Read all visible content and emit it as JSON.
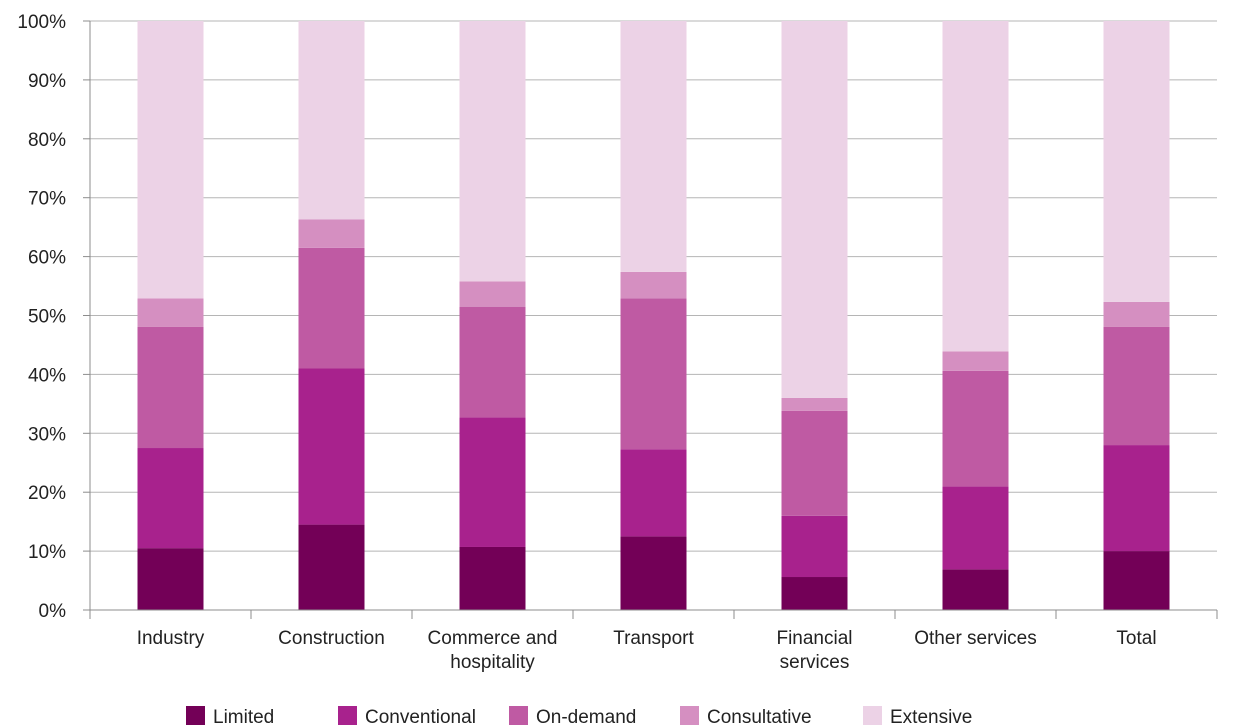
{
  "chart_data": {
    "type": "bar",
    "stacked": true,
    "percent_scale": true,
    "categories": [
      [
        "Industry"
      ],
      [
        "Construction"
      ],
      [
        "Commerce and",
        "hospitality"
      ],
      [
        "Transport"
      ],
      [
        "Financial",
        "services"
      ],
      [
        "Other services"
      ],
      [
        "Total"
      ]
    ],
    "series": [
      {
        "name": "Limited",
        "color": "#730057",
        "values": [
          10.5,
          14.5,
          10.7,
          12.5,
          5.6,
          6.9,
          10.0
        ]
      },
      {
        "name": "Conventional",
        "color": "#a8228d",
        "values": [
          17.0,
          26.5,
          22.0,
          14.8,
          10.4,
          14.1,
          18.0
        ]
      },
      {
        "name": "On-demand",
        "color": "#bf5aa3",
        "values": [
          20.6,
          20.5,
          18.8,
          25.6,
          17.8,
          19.6,
          20.1
        ]
      },
      {
        "name": "Consultative",
        "color": "#d58fc1",
        "values": [
          4.8,
          4.8,
          4.3,
          4.5,
          2.2,
          3.3,
          4.2
        ]
      },
      {
        "name": "Extensive",
        "color": "#ecd2e6",
        "values": [
          47.1,
          33.7,
          44.2,
          42.6,
          64.0,
          56.1,
          47.7
        ]
      }
    ],
    "yticks": [
      "0%",
      "10%",
      "20%",
      "30%",
      "40%",
      "50%",
      "60%",
      "70%",
      "80%",
      "90%",
      "100%"
    ],
    "ylim": [
      0,
      100
    ],
    "grid": true,
    "legend_position": "bottom",
    "title": "",
    "xlabel": "",
    "ylabel": ""
  }
}
